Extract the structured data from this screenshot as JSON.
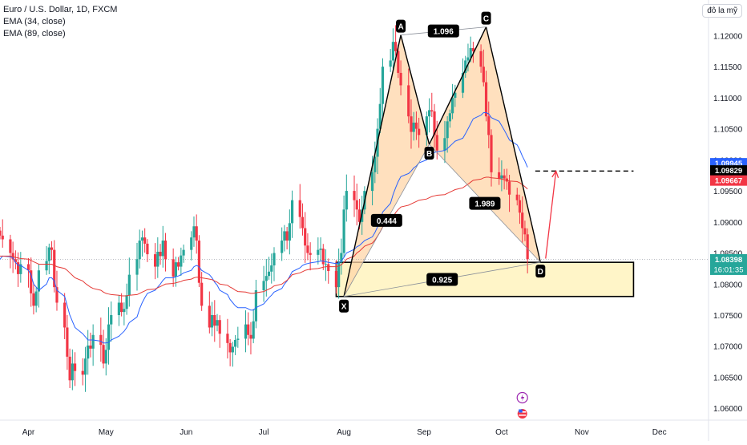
{
  "header": {
    "symbol": "Euro / U.S. Dollar, 1D, FXCM",
    "indicators": [
      "EMA (34, close)",
      "EMA (89, close)"
    ],
    "currency_button": "đô la mỹ"
  },
  "colors": {
    "up": "#26a69a",
    "up_fill": "#26a69a",
    "down": "#f23645",
    "ema34": "#2962ff",
    "ema89": "#e53935",
    "pattern_fill": "#ffd5a8",
    "zone_fill": "#fff5c8",
    "current_price_bg": "#26a69a"
  },
  "chart_data": {
    "type": "candlestick",
    "x_axis_labels": [
      {
        "label": "Apr",
        "date": "2024-04-01"
      },
      {
        "label": "May",
        "date": "2024-05-01"
      },
      {
        "label": "Jun",
        "date": "2024-06-01"
      },
      {
        "label": "Jul",
        "date": "2024-07-01"
      },
      {
        "label": "Aug",
        "date": "2024-08-01"
      },
      {
        "label": "Sep",
        "date": "2024-09-01"
      },
      {
        "label": "Oct",
        "date": "2024-10-01"
      },
      {
        "label": "Nov",
        "date": "2024-11-01"
      },
      {
        "label": "Dec",
        "date": "2024-12-01"
      }
    ],
    "y_ticks": [
      1.06,
      1.065,
      1.07,
      1.075,
      1.08,
      1.085,
      1.09,
      1.095,
      1.1,
      1.105,
      1.11,
      1.115,
      1.12
    ],
    "y_tick_labels": [
      "1.06000",
      "1.06500",
      "1.07000",
      "1.07500",
      "1.08000",
      "1.08500",
      "1.09000",
      "1.09500",
      "1.10000",
      "1.10500",
      "1.11000",
      "1.11500",
      "1.12000"
    ],
    "ylim": [
      1.0586,
      1.1229
    ],
    "x_range": [
      "2024-03-21",
      "2024-12-20"
    ],
    "candles_first_date": "2024-03-21",
    "candles_last_date": "2024-10-16",
    "closes": [
      1.0878,
      1.0872,
      1.085,
      1.084,
      1.0835,
      1.0816,
      1.0832,
      1.0822,
      1.0785,
      1.0765,
      1.0788,
      1.0822,
      1.0837,
      1.0859,
      1.0855,
      1.0795,
      1.077,
      1.073,
      1.0683,
      1.0645,
      1.0672,
      1.066,
      1.0654,
      1.068,
      1.0701,
      1.0696,
      1.0718,
      1.0702,
      1.0672,
      1.0694,
      1.0735,
      1.075,
      1.077,
      1.0755,
      1.076,
      1.0782,
      1.0815,
      1.084,
      1.087,
      1.0875,
      1.0865,
      1.0848,
      1.0828,
      1.0852,
      1.0845,
      1.087,
      1.084,
      1.0812,
      1.0835,
      1.0828,
      1.0846,
      1.0855,
      1.0875,
      1.0893,
      1.087,
      1.0802,
      1.0765,
      1.073,
      1.075,
      1.0733,
      1.0742,
      1.072,
      1.0705,
      1.069,
      1.0699,
      1.071,
      1.0712,
      1.0735,
      1.0718,
      1.0712,
      1.074,
      1.079,
      1.0805,
      1.0813,
      1.082,
      1.083,
      1.085,
      1.087,
      1.0885,
      1.087,
      1.0898,
      1.0935,
      1.0908,
      1.089,
      1.0862,
      1.085,
      1.0847,
      1.0855,
      1.0857,
      1.0832,
      1.0832,
      1.0821,
      1.0795,
      1.0835,
      1.085,
      1.092,
      1.095,
      1.0935,
      1.092,
      1.09,
      1.092,
      1.095,
      1.098,
      1.1005,
      1.105,
      1.109,
      1.115,
      1.116,
      1.119,
      1.1175,
      1.114,
      1.112,
      1.107,
      1.1045,
      1.106,
      1.105,
      1.104,
      1.107,
      1.108,
      1.1078,
      1.104,
      1.1015,
      1.1035,
      1.1062,
      1.1075,
      1.11,
      1.1108,
      1.114,
      1.116,
      1.1165,
      1.118,
      1.1175,
      1.115,
      1.1125,
      1.107,
      1.104,
      1.098,
      1.097,
      1.0975,
      1.097,
      1.0965,
      1.0944,
      1.0935,
      1.0915,
      1.089,
      1.088,
      1.084
    ],
    "series": [
      {
        "name": "EMA (34, close)",
        "values": [
          1.084,
          1.0845,
          1.0844,
          1.0842,
          1.0835,
          1.083,
          1.083,
          1.0822,
          1.0815,
          1.08,
          1.0795,
          1.079,
          1.08,
          1.081,
          1.081,
          1.0805,
          1.079,
          1.078,
          1.0765,
          1.075,
          1.074,
          1.073,
          1.072,
          1.0715,
          1.071,
          1.071,
          1.071,
          1.0708,
          1.0705,
          1.0705,
          1.0706,
          1.071,
          1.0716,
          1.072,
          1.0724,
          1.073,
          1.0738,
          1.0747,
          1.076,
          1.077,
          1.0778,
          1.0785,
          1.079,
          1.0795,
          1.08,
          1.0806,
          1.081,
          1.081,
          1.0812,
          1.0813,
          1.0815,
          1.0818,
          1.0822,
          1.0828,
          1.083,
          1.0828,
          1.0822,
          1.0815,
          1.081,
          1.0803,
          1.0798,
          1.079,
          1.0783,
          1.0775,
          1.077,
          1.0765,
          1.0762,
          1.0762,
          1.076,
          1.0758,
          1.0758,
          1.0762,
          1.0768,
          1.0773,
          1.0778,
          1.0782,
          1.0787,
          1.0793,
          1.08,
          1.0805,
          1.0812,
          1.082,
          1.0826,
          1.083,
          1.0832,
          1.0833,
          1.0834,
          1.0836,
          1.0837,
          1.0837,
          1.0836,
          1.0835,
          1.0833,
          1.0834,
          1.0837,
          1.0843,
          1.085,
          1.0856,
          1.086,
          1.0862,
          1.0866,
          1.087,
          1.0876,
          1.0883,
          1.0892,
          1.0903,
          1.0916,
          1.093,
          1.0944,
          1.0955,
          1.0965,
          1.0973,
          1.0978,
          1.0982,
          1.0987,
          1.099,
          1.0995,
          1.1,
          1.1005,
          1.101,
          1.1012,
          1.1013,
          1.1015,
          1.1018,
          1.1022,
          1.1026,
          1.103,
          1.1035,
          1.1042,
          1.105,
          1.1058,
          1.1066,
          1.1072,
          1.1076,
          1.1076,
          1.1074,
          1.1068,
          1.1062,
          1.1055,
          1.1048,
          1.104,
          1.1032,
          1.1024,
          1.1016,
          1.1006,
          1.0998,
          1.0988
        ]
      },
      {
        "name": "EMA (89, close)",
        "values": [
          1.0845,
          1.0845,
          1.0845,
          1.0844,
          1.0843,
          1.0842,
          1.0841,
          1.084,
          1.0838,
          1.0836,
          1.0834,
          1.0832,
          1.0832,
          1.0832,
          1.0832,
          1.083,
          1.0828,
          1.0825,
          1.0822,
          1.0818,
          1.0814,
          1.081,
          1.0805,
          1.0801,
          1.0798,
          1.0795,
          1.0793,
          1.079,
          1.0787,
          1.0785,
          1.0784,
          1.0783,
          1.0782,
          1.0781,
          1.0781,
          1.0781,
          1.0782,
          1.0783,
          1.0785,
          1.0787,
          1.0789,
          1.0791,
          1.0792,
          1.0794,
          1.0796,
          1.0798,
          1.08,
          1.0801,
          1.0802,
          1.0803,
          1.0804,
          1.0806,
          1.0808,
          1.081,
          1.0811,
          1.0811,
          1.081,
          1.0808,
          1.0807,
          1.0805,
          1.0803,
          1.08,
          1.0798,
          1.0795,
          1.0793,
          1.079,
          1.0788,
          1.0787,
          1.0786,
          1.0785,
          1.0785,
          1.0786,
          1.0788,
          1.079,
          1.0792,
          1.0794,
          1.0797,
          1.08,
          1.0803,
          1.0806,
          1.081,
          1.0815,
          1.0818,
          1.082,
          1.0822,
          1.0823,
          1.0824,
          1.0825,
          1.0826,
          1.0827,
          1.0828,
          1.0828,
          1.0828,
          1.0829,
          1.0831,
          1.0835,
          1.084,
          1.0845,
          1.085,
          1.0853,
          1.0857,
          1.0861,
          1.0866,
          1.0871,
          1.0877,
          1.0884,
          1.0892,
          1.09,
          1.0908,
          1.0915,
          1.092,
          1.0924,
          1.0927,
          1.0929,
          1.0931,
          1.0933,
          1.0935,
          1.0937,
          1.0939,
          1.0941,
          1.0942,
          1.0943,
          1.0944,
          1.0946,
          1.0948,
          1.095,
          1.0952,
          1.0955,
          1.0958,
          1.0961,
          1.0964,
          1.0967,
          1.0969,
          1.0971,
          1.0972,
          1.0972,
          1.0971,
          1.097,
          1.0969,
          1.0968,
          1.0967,
          1.0966,
          1.0965,
          1.0963,
          1.096,
          1.0957,
          1.0953
        ]
      }
    ],
    "harmonic_pattern": {
      "points": [
        {
          "label": "X",
          "date": "2024-08-01",
          "price": 1.078
        },
        {
          "label": "A",
          "date": "2024-08-23",
          "price": 1.1201
        },
        {
          "label": "B",
          "date": "2024-09-03",
          "price": 1.1025
        },
        {
          "label": "C",
          "date": "2024-09-25",
          "price": 1.1214
        },
        {
          "label": "D",
          "date": "2024-10-16",
          "price": 1.0835
        }
      ],
      "ratios": [
        {
          "label": "1.096",
          "from": "A",
          "to": "C"
        },
        {
          "label": "0.444",
          "from": "X",
          "to": "B"
        },
        {
          "label": "1.989",
          "from": "B",
          "to": "D"
        },
        {
          "label": "0.925",
          "from": "X",
          "to": "D"
        }
      ]
    },
    "zone": {
      "date_from": "2024-07-29",
      "date_to": "2024-11-21",
      "price_top": 1.0835,
      "price_bottom": 1.078
    },
    "target_line": {
      "date_from": "2024-10-14",
      "date_to": "2024-11-21",
      "price": 1.0982
    },
    "target_arrow": {
      "from": {
        "date": "2024-10-18",
        "price": 1.0841
      },
      "to": {
        "date": "2024-10-22",
        "price": 1.0982
      }
    },
    "current_price_line": 1.08398,
    "price_tags": [
      {
        "label": "1.09945",
        "price": 1.09945,
        "kind": "blue"
      },
      {
        "label": "1.09829",
        "price": 1.09829,
        "kind": "black"
      },
      {
        "label": "1.09667",
        "price": 1.09667,
        "kind": "red"
      },
      {
        "label": "1.08398",
        "sublabel": "16:01:35",
        "price": 1.08398,
        "kind": "green"
      }
    ],
    "event_icons": [
      "lightning-icon",
      "us-flag-icon"
    ],
    "grid": false
  }
}
